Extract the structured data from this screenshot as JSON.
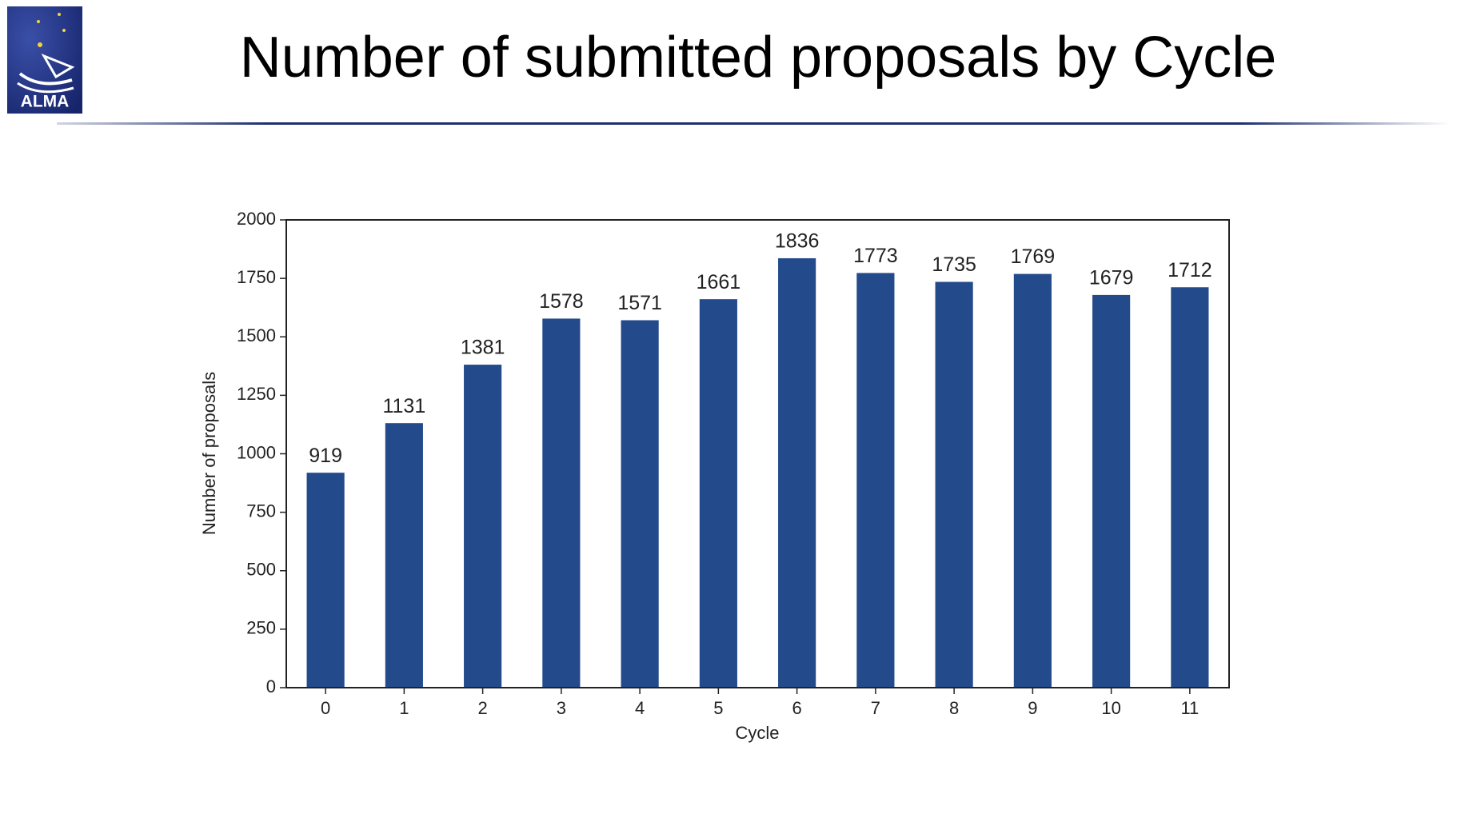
{
  "logo": "ALMA",
  "chart_data": {
    "type": "bar",
    "title": "Number of submitted proposals by Cycle",
    "xlabel": "Cycle",
    "ylabel": "Number of proposals",
    "categories": [
      "0",
      "1",
      "2",
      "3",
      "4",
      "5",
      "6",
      "7",
      "8",
      "9",
      "10",
      "11"
    ],
    "values": [
      919,
      1131,
      1381,
      1578,
      1571,
      1661,
      1836,
      1773,
      1735,
      1769,
      1679,
      1712
    ],
    "color": "#234b8c",
    "ylim": [
      0,
      2000
    ],
    "yticks": [
      0,
      250,
      500,
      750,
      1000,
      1250,
      1500,
      1750,
      2000
    ],
    "grid": false
  }
}
